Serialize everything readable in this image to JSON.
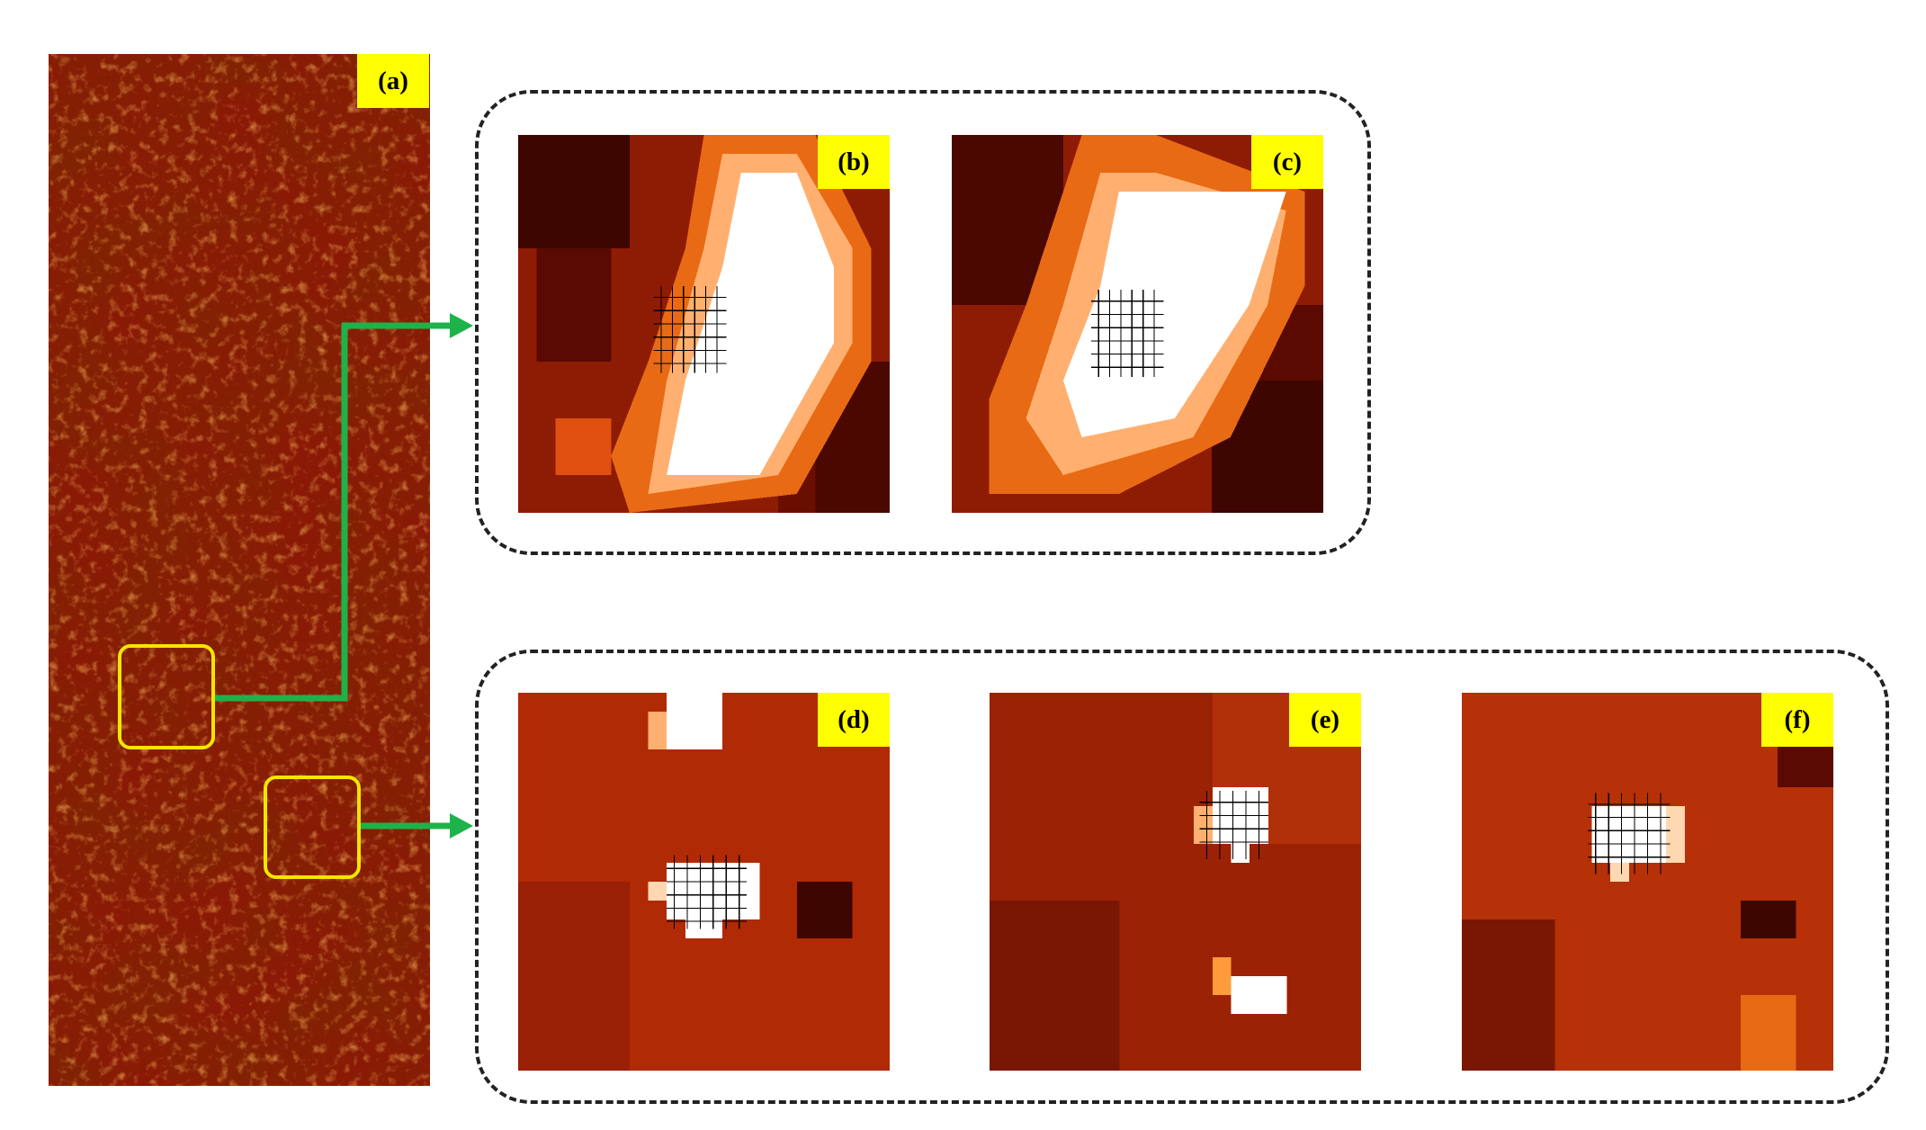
{
  "figure": {
    "panels": [
      {
        "id": "a",
        "label": "(a)",
        "description": "full scene"
      },
      {
        "id": "b",
        "label": "(b)"
      },
      {
        "id": "c",
        "label": "(c)"
      },
      {
        "id": "d",
        "label": "(d)"
      },
      {
        "id": "e",
        "label": "(e)"
      },
      {
        "id": "f",
        "label": "(f)"
      }
    ],
    "colors": {
      "label_background": "#ffff00",
      "highlight_box": "#f2e600",
      "connector_arrow": "#1db34a",
      "frame": "#222222",
      "colormap": [
        "#3a0500",
        "#7a1200",
        "#b82a00",
        "#e05a10",
        "#ff9b3a",
        "#ffe0c0",
        "#ffffff"
      ]
    }
  }
}
